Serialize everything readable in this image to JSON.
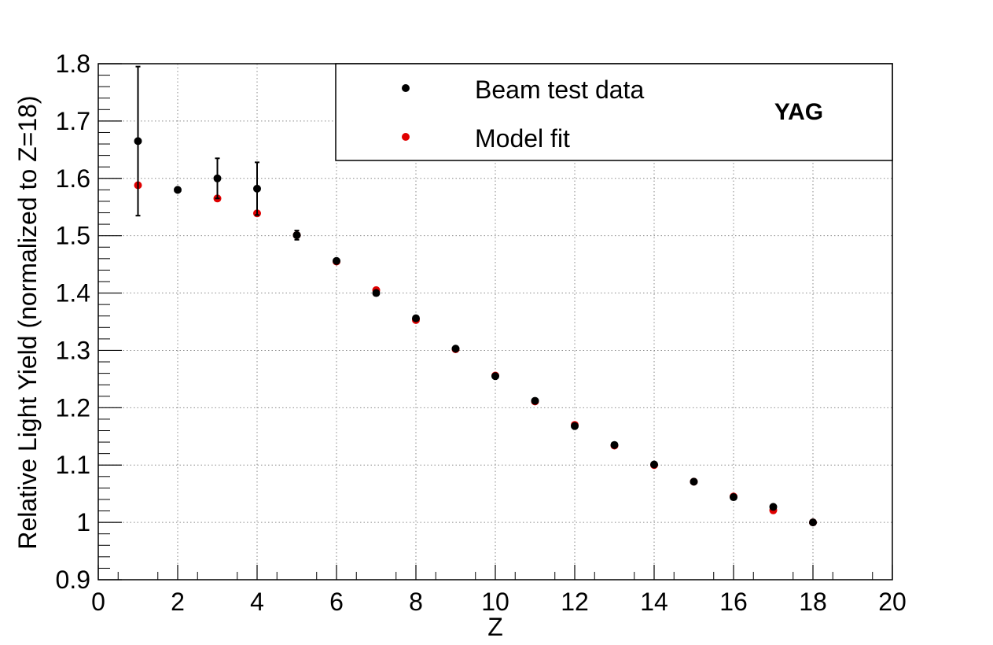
{
  "chart_data": {
    "type": "scatter",
    "xlabel": "Z",
    "ylabel": "Relative Light Yield (normalized to Z=18)",
    "xlim": [
      0,
      20
    ],
    "ylim": [
      0.9,
      1.8
    ],
    "x_ticks": [
      "0",
      "2",
      "4",
      "6",
      "8",
      "10",
      "12",
      "14",
      "16",
      "18",
      "20"
    ],
    "y_ticks": [
      "0.9",
      "1",
      "1.1",
      "1.2",
      "1.3",
      "1.4",
      "1.5",
      "1.6",
      "1.7",
      "1.8"
    ],
    "grid": true,
    "legend_position": "top-right",
    "annotation": "YAG",
    "series": [
      {
        "name": "Beam test data",
        "color": "#000000",
        "marker": "circle",
        "points": [
          {
            "x": 1,
            "y": 1.665,
            "err": 0.13
          },
          {
            "x": 2,
            "y": 1.58,
            "err": 0
          },
          {
            "x": 3,
            "y": 1.6,
            "err": 0.035
          },
          {
            "x": 4,
            "y": 1.582,
            "err": 0.046
          },
          {
            "x": 5,
            "y": 1.501,
            "err": 0.008
          },
          {
            "x": 6,
            "y": 1.456,
            "err": 0
          },
          {
            "x": 7,
            "y": 1.4,
            "err": 0
          },
          {
            "x": 8,
            "y": 1.356,
            "err": 0
          },
          {
            "x": 9,
            "y": 1.303,
            "err": 0
          },
          {
            "x": 10,
            "y": 1.255,
            "err": 0
          },
          {
            "x": 11,
            "y": 1.212,
            "err": 0
          },
          {
            "x": 12,
            "y": 1.168,
            "err": 0
          },
          {
            "x": 13,
            "y": 1.135,
            "err": 0
          },
          {
            "x": 14,
            "y": 1.101,
            "err": 0
          },
          {
            "x": 15,
            "y": 1.071,
            "err": 0
          },
          {
            "x": 16,
            "y": 1.044,
            "err": 0
          },
          {
            "x": 17,
            "y": 1.027,
            "err": 0
          },
          {
            "x": 18,
            "y": 1.0,
            "err": 0
          }
        ]
      },
      {
        "name": "Model fit",
        "color": "#e00000",
        "marker": "circle",
        "points": [
          {
            "x": 1,
            "y": 1.588
          },
          {
            "x": 3,
            "y": 1.565
          },
          {
            "x": 4,
            "y": 1.539
          },
          {
            "x": 5,
            "y": 1.501
          },
          {
            "x": 6,
            "y": 1.455
          },
          {
            "x": 7,
            "y": 1.405
          },
          {
            "x": 8,
            "y": 1.353
          },
          {
            "x": 9,
            "y": 1.302
          },
          {
            "x": 10,
            "y": 1.256
          },
          {
            "x": 11,
            "y": 1.211
          },
          {
            "x": 12,
            "y": 1.17
          },
          {
            "x": 13,
            "y": 1.134
          },
          {
            "x": 14,
            "y": 1.1
          },
          {
            "x": 15,
            "y": 1.071
          },
          {
            "x": 16,
            "y": 1.045
          },
          {
            "x": 17,
            "y": 1.021
          },
          {
            "x": 18,
            "y": 1.0
          }
        ]
      }
    ]
  }
}
